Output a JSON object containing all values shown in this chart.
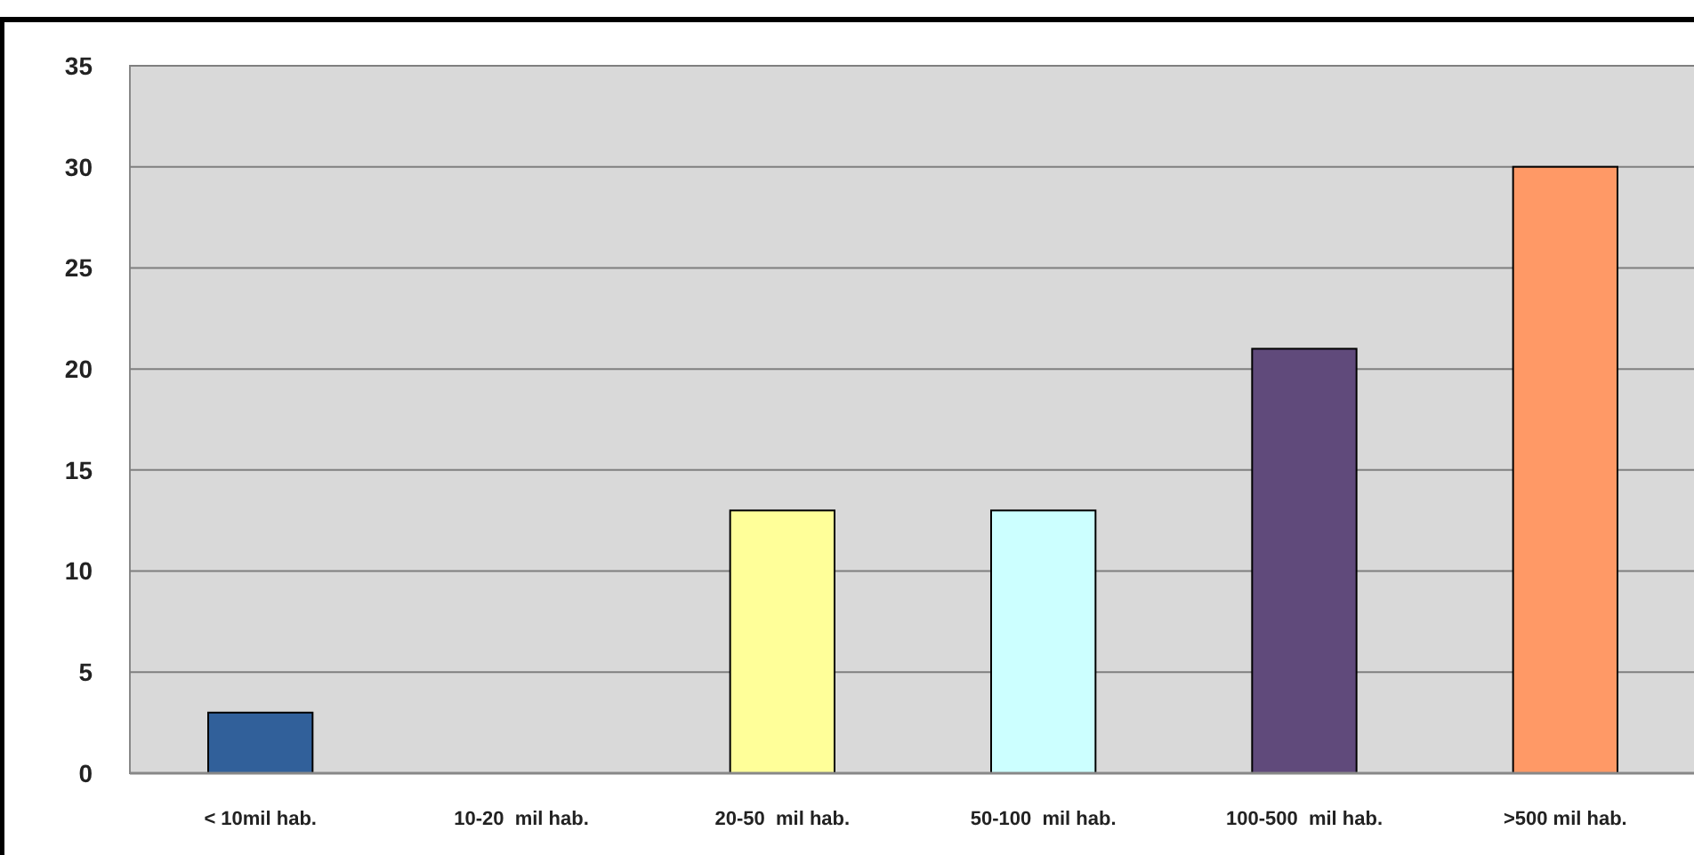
{
  "chart_data": {
    "type": "bar",
    "categories": [
      "< 10mil hab.",
      "10-20  mil hab.",
      "20-50  mil hab.",
      "50-100  mil hab.",
      "100-500  mil hab.",
      ">500 mil hab."
    ],
    "values": [
      3,
      0,
      13,
      13,
      21,
      30
    ],
    "colors": [
      "#31609a",
      "#ffd966",
      "#ffff99",
      "#ccffff",
      "#604a7b",
      "#ff9966"
    ],
    "ylim": [
      0,
      35
    ],
    "yticks": [
      0,
      5,
      10,
      15,
      20,
      25,
      30,
      35
    ],
    "grid": "y"
  }
}
